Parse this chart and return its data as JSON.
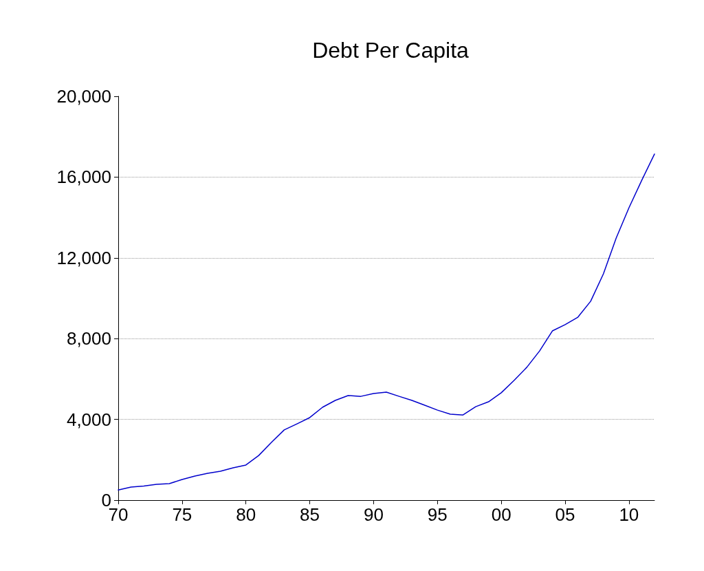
{
  "chart_data": {
    "type": "line",
    "title": "Debt Per Capita",
    "x": [
      1970,
      1971,
      1972,
      1973,
      1974,
      1975,
      1976,
      1977,
      1978,
      1979,
      1980,
      1981,
      1982,
      1983,
      1984,
      1985,
      1986,
      1987,
      1988,
      1989,
      1990,
      1991,
      1992,
      1993,
      1994,
      1995,
      1996,
      1997,
      1998,
      1999,
      2000,
      2001,
      2002,
      2003,
      2004,
      2005,
      2006,
      2007,
      2008,
      2009,
      2010,
      2011,
      2012
    ],
    "series": [
      {
        "color": "#0000cc",
        "values": [
          500,
          650,
          700,
          780,
          820,
          1020,
          1190,
          1330,
          1430,
          1600,
          1740,
          2210,
          2860,
          3480,
          3780,
          4090,
          4600,
          4940,
          5180,
          5140,
          5280,
          5350,
          5140,
          4940,
          4700,
          4460,
          4260,
          4220,
          4630,
          4870,
          5320,
          5930,
          6580,
          7390,
          8380,
          8690,
          9060,
          9850,
          11210,
          12980,
          14480,
          15840,
          17140
        ]
      }
    ],
    "xlim": [
      1970,
      2012
    ],
    "xticks": [
      {
        "value": 1970,
        "label": "70"
      },
      {
        "value": 1975,
        "label": "75"
      },
      {
        "value": 1980,
        "label": "80"
      },
      {
        "value": 1985,
        "label": "85"
      },
      {
        "value": 1990,
        "label": "90"
      },
      {
        "value": 1995,
        "label": "95"
      },
      {
        "value": 2000,
        "label": "00"
      },
      {
        "value": 2005,
        "label": "05"
      },
      {
        "value": 2010,
        "label": "10"
      }
    ],
    "ylim": [
      0,
      20000
    ],
    "yticks": [
      {
        "value": 0,
        "label": "0"
      },
      {
        "value": 4000,
        "label": "4,000"
      },
      {
        "value": 8000,
        "label": "8,000"
      },
      {
        "value": 12000,
        "label": "12,000"
      },
      {
        "value": 16000,
        "label": "16,000"
      },
      {
        "value": 20000,
        "label": "20,000"
      }
    ],
    "grid": "y",
    "marker": "none",
    "line_style": "solid"
  }
}
